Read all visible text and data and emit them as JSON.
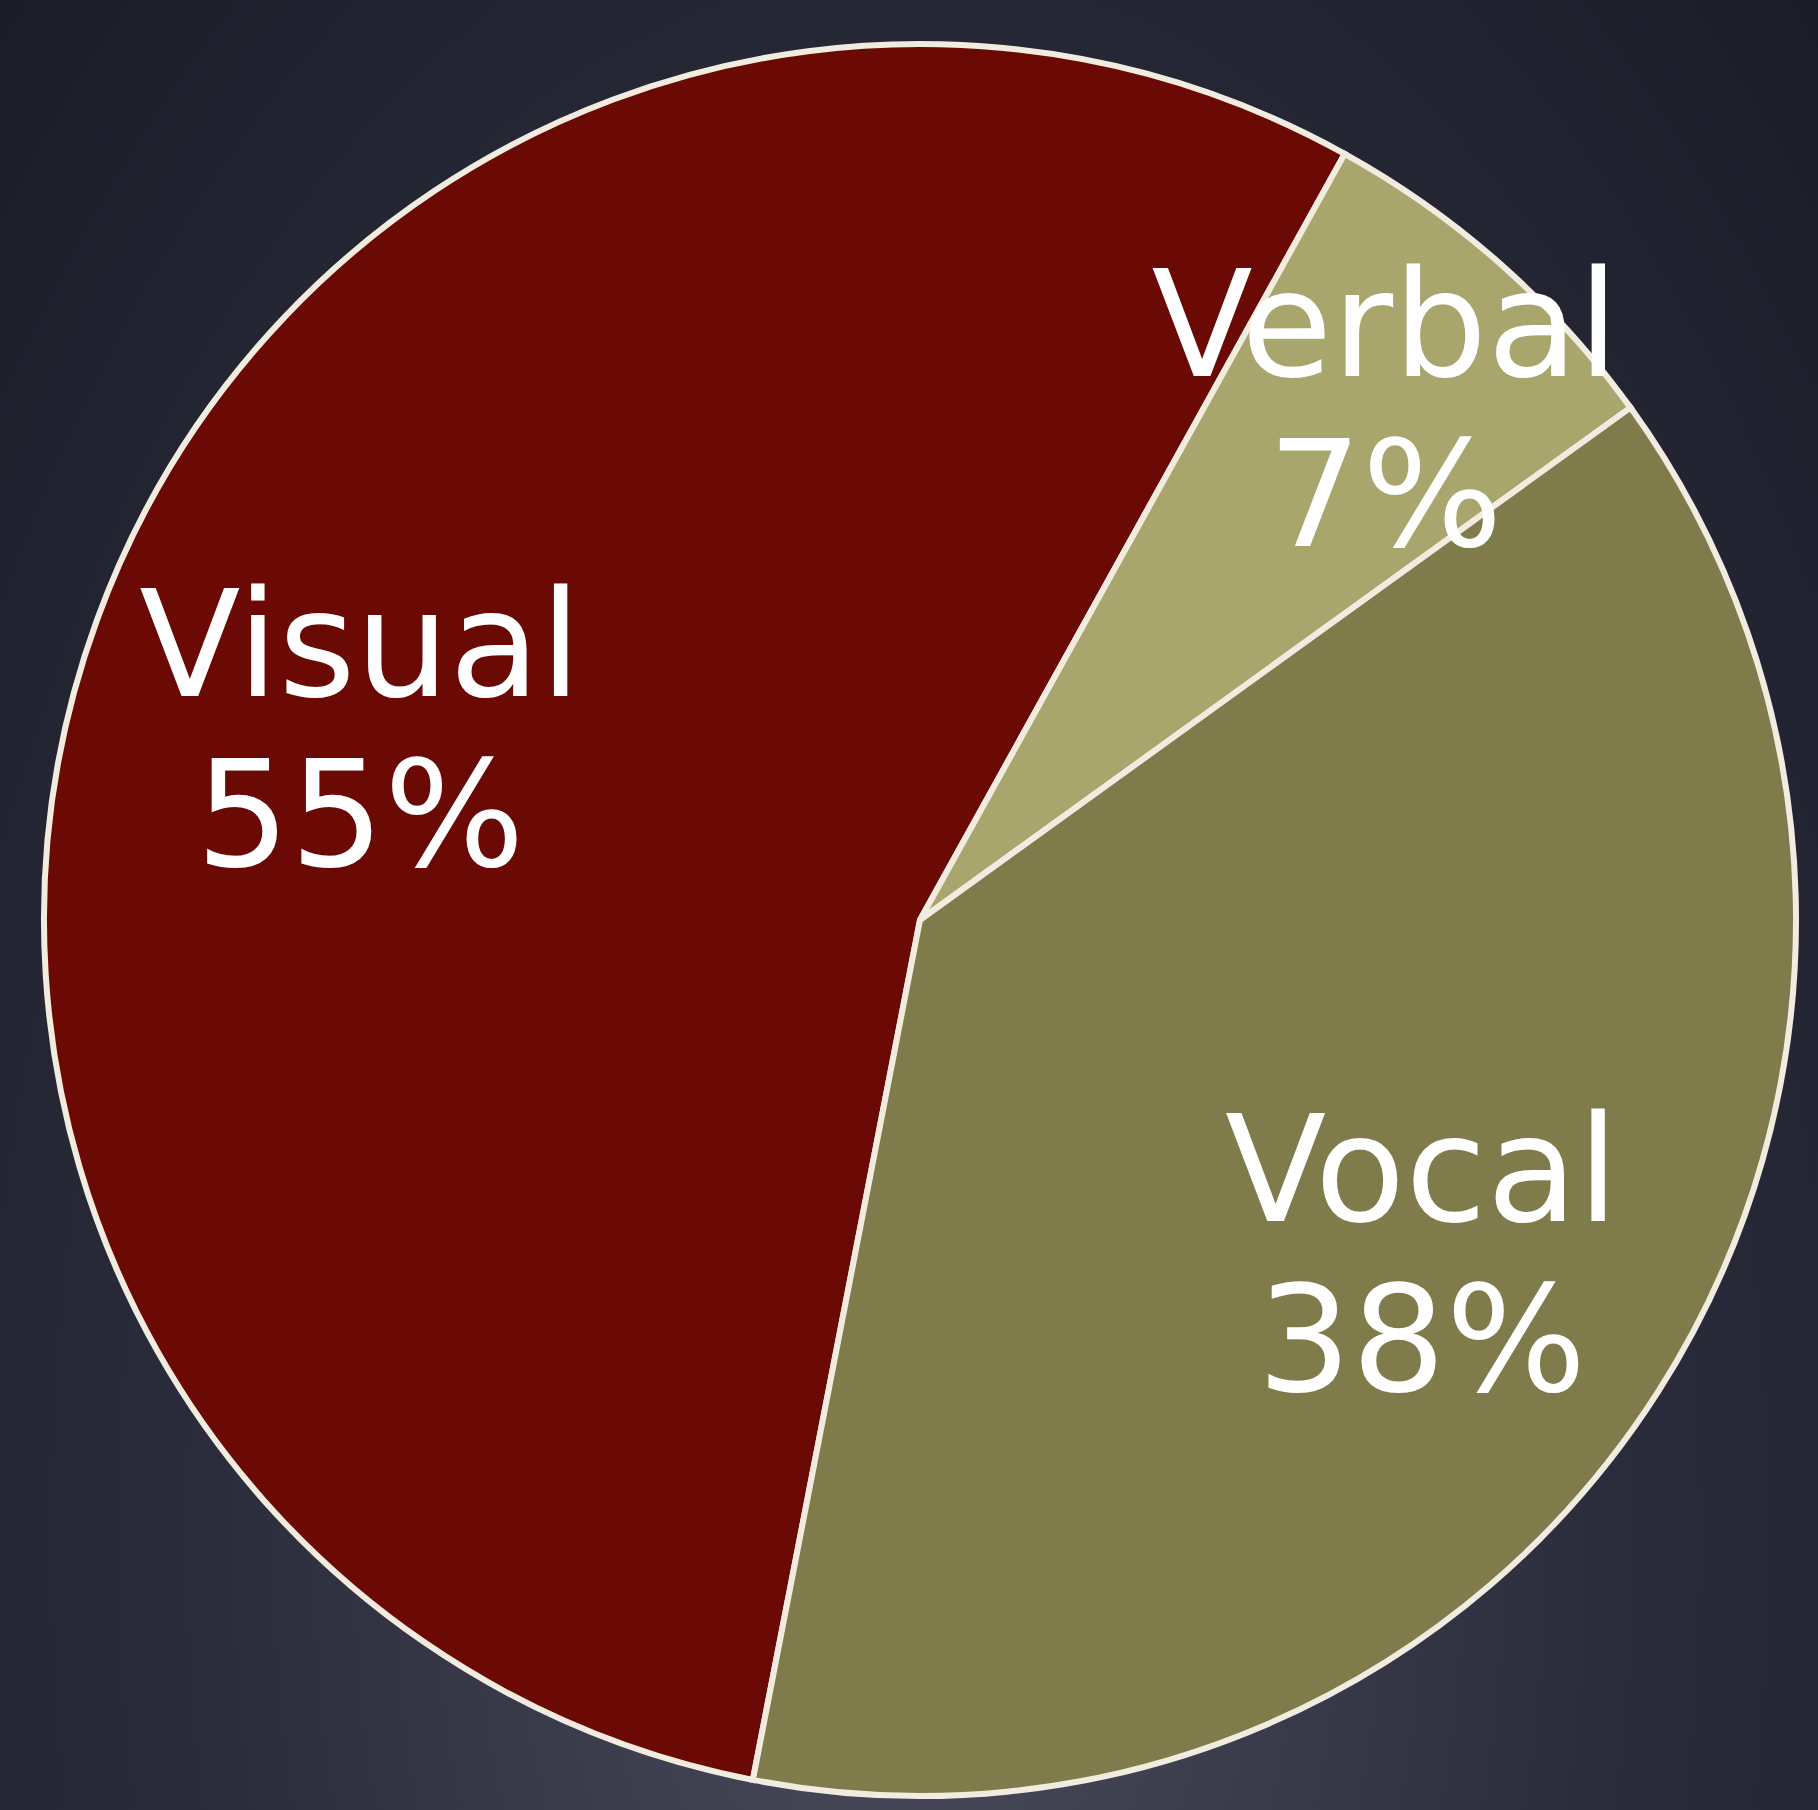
{
  "chart_data": {
    "type": "pie",
    "categories": [
      "Visual",
      "Verbal",
      "Vocal"
    ],
    "values": [
      55,
      7,
      38
    ],
    "colors": [
      "#6b0904",
      "#a8a66c",
      "#7f7b4b"
    ],
    "value_labels": [
      "55%",
      "7%",
      "38%"
    ],
    "legend": false
  }
}
